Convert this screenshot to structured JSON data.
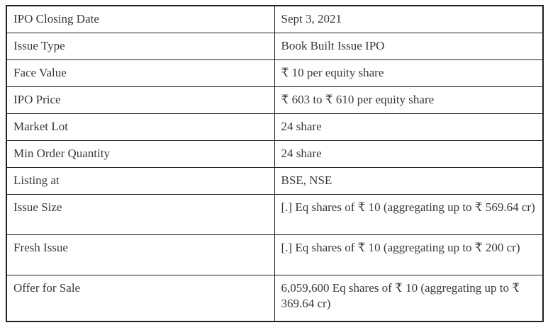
{
  "table": {
    "colors": {
      "text": "#383838",
      "border": "#1f1f1f",
      "background": "#ffffff"
    },
    "rows": [
      {
        "label": "IPO Closing Date",
        "value": "Sept 3, 2021"
      },
      {
        "label": "Issue Type",
        "value": "Book Built Issue IPO"
      },
      {
        "label": "Face Value",
        "value": "₹ 10 per equity share"
      },
      {
        "label": "IPO Price",
        "value": "₹ 603 to ₹ 610 per equity share"
      },
      {
        "label": "Market Lot",
        "value": "24 share"
      },
      {
        "label": "Min Order Quantity",
        "value": "24 share"
      },
      {
        "label": "Listing at",
        "value": "BSE, NSE"
      },
      {
        "label": "Issue Size",
        "value": "[.] Eq shares of ₹ 10 (aggregating up to ₹ 569.64 cr)"
      },
      {
        "label": "Fresh Issue",
        "value": "[.] Eq shares of ₹ 10 (aggregating up to ₹ 200 cr)"
      },
      {
        "label": "Offer for Sale",
        "value": "6,059,600 Eq shares of ₹ 10 (aggregating up to ₹ 369.64 cr)"
      }
    ]
  }
}
